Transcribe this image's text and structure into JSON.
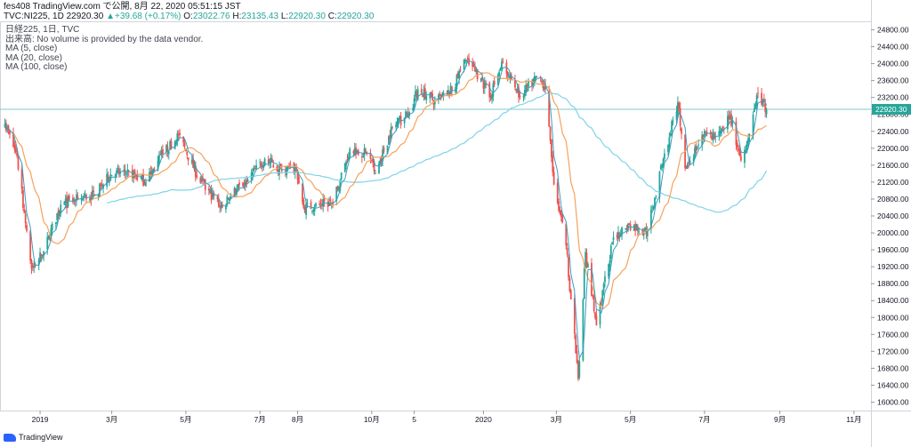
{
  "header": {
    "line1": "fes408 TradingView.com で公開, 8月 22, 2020 05:51:15 JST",
    "symbol": "TVC:NI225, 1D",
    "last": "22920.30",
    "arrow": "▲",
    "change": "+39.68 (+0.17%)",
    "o_label": "O:",
    "open": "23022.76",
    "h_label": "H:",
    "high": "23135.43",
    "l_label": "L:",
    "low": "22920.30",
    "c_label": "C:",
    "close": "22920.30"
  },
  "legend": {
    "title": "日経225, 1日, TVC",
    "volume_note": "出来高: No volume is provided by the data vendor.",
    "ma5": "MA (5, close)",
    "ma20": "MA (20, close)",
    "ma100": "MA (100, close)"
  },
  "footer": {
    "brand": "TradingView"
  },
  "colors": {
    "up": "#26a69a",
    "down": "#ef5350",
    "ma5": "#3a9dbf",
    "ma20": "#f7a15c",
    "ma100": "#7fd3e8",
    "price_line": "#7fc9cf",
    "price_tag": "#26a69a"
  },
  "chart_data": {
    "type": "candlestick",
    "y_ticks": [
      "16000.00",
      "16400.00",
      "16800.00",
      "17200.00",
      "17600.00",
      "18000.00",
      "18400.00",
      "18800.00",
      "19200.00",
      "19600.00",
      "20000.00",
      "20400.00",
      "20800.00",
      "21200.00",
      "21600.00",
      "22000.00",
      "22400.00",
      "22800.00",
      "23200.00",
      "23600.00",
      "24000.00",
      "24400.00",
      "24800.00"
    ],
    "ylim": [
      15800,
      25000
    ],
    "last_price_label": "22920.30",
    "last_price": 22920.3,
    "x_ticks": [
      "2019",
      "3月",
      "5月",
      "7月",
      "8月",
      "10月",
      "5",
      "2020",
      "3月",
      "5月",
      "7月",
      "9月",
      "11月"
    ],
    "x_tick_dates": [
      "2019-01-01",
      "2019-03-01",
      "2019-05-01",
      "2019-07-01",
      "2019-08-01",
      "2019-10-01",
      "2019-11-05",
      "2020-01-01",
      "2020-03-01",
      "2020-05-01",
      "2020-07-01",
      "2020-09-01",
      "2020-11-01"
    ],
    "x_range": [
      "2018-11-29",
      "2020-11-15"
    ],
    "close_anchors": [
      [
        "2018-12-03",
        22574
      ],
      [
        "2018-12-13",
        21816
      ],
      [
        "2018-12-25",
        19155
      ],
      [
        "2019-01-04",
        19561
      ],
      [
        "2019-01-18",
        20666
      ],
      [
        "2019-02-01",
        20788
      ],
      [
        "2019-02-15",
        20900
      ],
      [
        "2019-02-28",
        21385
      ],
      [
        "2019-03-15",
        21450
      ],
      [
        "2019-03-29",
        21205
      ],
      [
        "2019-04-12",
        21870
      ],
      [
        "2019-04-25",
        22307
      ],
      [
        "2019-05-13",
        21191
      ],
      [
        "2019-05-31",
        20601
      ],
      [
        "2019-06-07",
        20884
      ],
      [
        "2019-06-21",
        21258
      ],
      [
        "2019-07-05",
        21746
      ],
      [
        "2019-07-19",
        21466
      ],
      [
        "2019-07-31",
        21521
      ],
      [
        "2019-08-06",
        20585
      ],
      [
        "2019-08-20",
        20677
      ],
      [
        "2019-08-30",
        20704
      ],
      [
        "2019-09-13",
        21988
      ],
      [
        "2019-09-27",
        21878
      ],
      [
        "2019-10-04",
        21410
      ],
      [
        "2019-10-18",
        22492
      ],
      [
        "2019-11-01",
        22850
      ],
      [
        "2019-11-08",
        23391
      ],
      [
        "2019-11-22",
        23113
      ],
      [
        "2019-12-06",
        23354
      ],
      [
        "2019-12-17",
        24066
      ],
      [
        "2019-12-30",
        23657
      ],
      [
        "2020-01-06",
        23204
      ],
      [
        "2020-01-17",
        24041
      ],
      [
        "2020-01-31",
        23205
      ],
      [
        "2020-02-14",
        23687
      ],
      [
        "2020-02-21",
        23386
      ],
      [
        "2020-02-28",
        21142
      ],
      [
        "2020-03-09",
        19698
      ],
      [
        "2020-03-19",
        16552
      ],
      [
        "2020-03-25",
        19546
      ],
      [
        "2020-04-03",
        17820
      ],
      [
        "2020-04-17",
        19897
      ],
      [
        "2020-04-30",
        20193
      ],
      [
        "2020-05-15",
        20037
      ],
      [
        "2020-05-29",
        21877
      ],
      [
        "2020-06-09",
        23091
      ],
      [
        "2020-06-15",
        21530
      ],
      [
        "2020-06-30",
        22288
      ],
      [
        "2020-07-10",
        22290
      ],
      [
        "2020-07-22",
        22751
      ],
      [
        "2020-07-31",
        21710
      ],
      [
        "2020-08-07",
        22329
      ],
      [
        "2020-08-14",
        23289
      ],
      [
        "2020-08-21",
        22920
      ]
    ]
  }
}
